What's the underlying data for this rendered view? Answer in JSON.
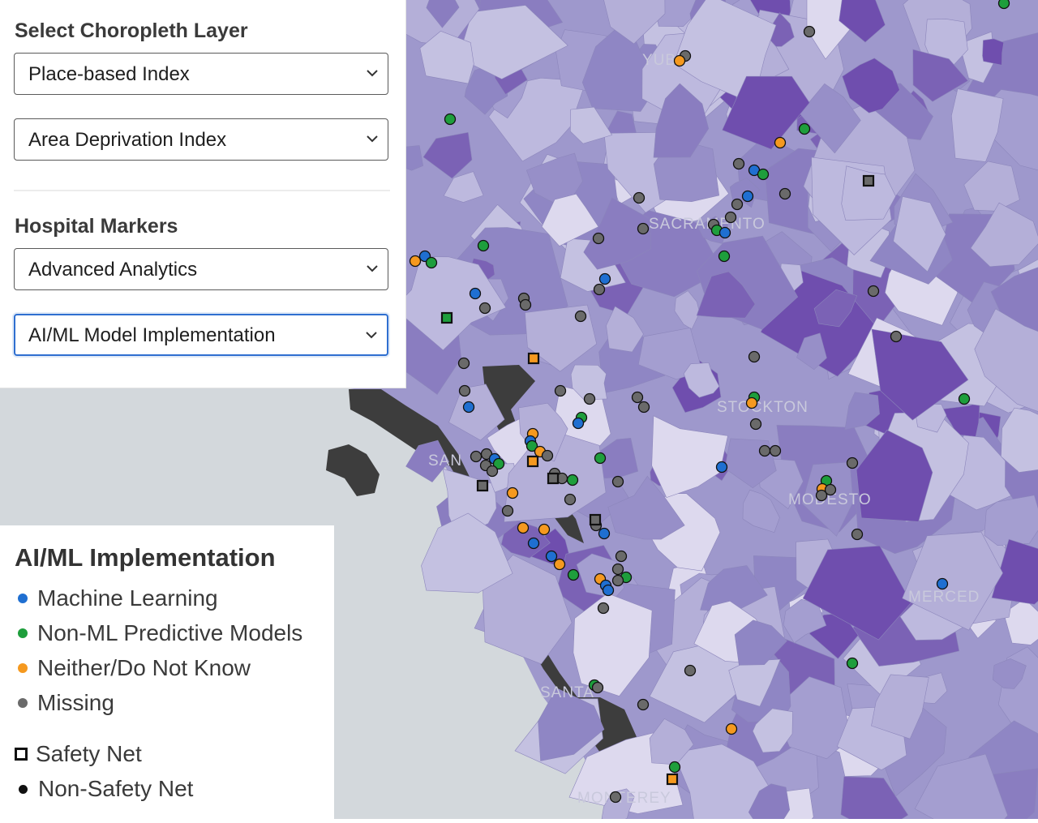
{
  "controls": {
    "choropleth_title": "Select Choropleth Layer",
    "choropleth_category": "Place-based Index",
    "choropleth_index": "Area Deprivation Index",
    "markers_title": "Hospital Markers",
    "marker_category": "Advanced Analytics",
    "marker_metric": "AI/ML Model Implementation"
  },
  "legend": {
    "title": "AI/ML Implementation",
    "items": [
      {
        "label": "Machine Learning",
        "color": "#1f6fd1"
      },
      {
        "label": "Non-ML Predictive Models",
        "color": "#1e9e3c"
      },
      {
        "label": "Neither/Do Not Know",
        "color": "#f5991f"
      },
      {
        "label": "Missing",
        "color": "#6a6a6a"
      }
    ],
    "shape_items": [
      {
        "label": "Safety Net"
      },
      {
        "label": "Non-Safety Net"
      }
    ]
  },
  "map_labels": [
    "SAN",
    "STOCKTON",
    "MODESTO",
    "MERCED",
    "SACRAMENTO",
    "SANTA",
    "MONTEREY",
    "YUBA"
  ],
  "colors": {
    "ocean": "#d3d8dc",
    "land_base": "#9e98cc",
    "land_dark": "#7d58b6",
    "land_light": "#d7d4ea",
    "bay": "#3d3d3d"
  }
}
